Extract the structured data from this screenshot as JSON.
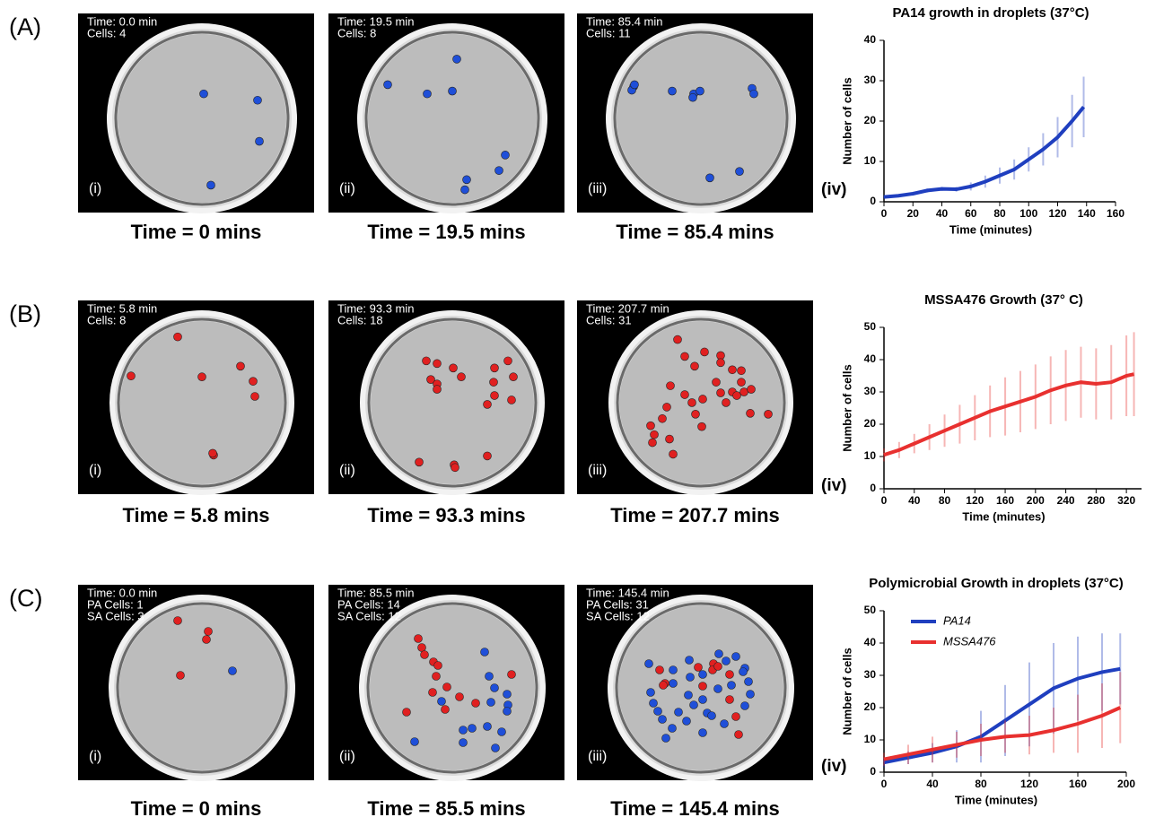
{
  "panels": [
    {
      "label": "(A)",
      "chart_label": "(iv)",
      "images": [
        {
          "overlay": [
            "Time: 0.0 min",
            "Cells: 4"
          ],
          "label": "(i)",
          "caption": "Time = 0 mins"
        },
        {
          "overlay": [
            "Time: 19.5 min",
            "Cells: 8"
          ],
          "label": "(ii)",
          "caption": "Time = 19.5  mins"
        },
        {
          "overlay": [
            "Time: 85.4 min",
            "Cells: 11"
          ],
          "label": "(iii)",
          "caption": "Time = 85.4  mins"
        }
      ]
    },
    {
      "label": "(B)",
      "chart_label": "(iv)",
      "images": [
        {
          "overlay": [
            "Time: 5.8 min",
            "Cells: 8"
          ],
          "label": "(i)",
          "caption": "Time = 5.8 mins"
        },
        {
          "overlay": [
            "Time: 93.3 min",
            "Cells: 18"
          ],
          "label": "(ii)",
          "caption": "Time = 93.3  mins"
        },
        {
          "overlay": [
            "Time: 207.7 min",
            "Cells: 31"
          ],
          "label": "(iii)",
          "caption": "Time = 207.7  mins"
        }
      ]
    },
    {
      "label": "(C)",
      "chart_label": "(iv)",
      "images": [
        {
          "overlay": [
            "Time: 0.0 min",
            "PA Cells: 1",
            "SA Cells: 3"
          ],
          "label": "(i)",
          "caption": "Time = 0 mins"
        },
        {
          "overlay": [
            "Time: 85.5 min",
            "PA Cells: 14",
            "SA Cells: 12"
          ],
          "label": "(ii)",
          "caption": "Time = 85.5  mins"
        },
        {
          "overlay": [
            "Time: 145.4 min",
            "PA Cells: 31",
            "SA Cells: 12"
          ],
          "label": "(iii)",
          "caption": "Time = 145.4  mins"
        }
      ]
    }
  ],
  "chart_data": [
    {
      "type": "line",
      "title": "PA14 growth in droplets (37°C)",
      "x_label": "Time (minutes)",
      "y_label": "Number of cells",
      "x": [
        0,
        10,
        20,
        30,
        40,
        50,
        60,
        70,
        80,
        90,
        100,
        110,
        120,
        130,
        138
      ],
      "series": [
        {
          "name": "PA14",
          "color": "#1f3fbf",
          "values": [
            1.2,
            1.5,
            2,
            2.8,
            3.2,
            3.1,
            3.8,
            5,
            6.5,
            8,
            10.5,
            13,
            16,
            20,
            23.5
          ],
          "errors": [
            0.3,
            0.3,
            0.4,
            0.5,
            0.5,
            0.6,
            1,
            1.5,
            2,
            2.5,
            3,
            4,
            5,
            6.5,
            7.5
          ]
        }
      ],
      "xlim": [
        0,
        160
      ],
      "xticks": [
        0,
        20,
        40,
        60,
        80,
        100,
        120,
        140,
        160
      ],
      "ylim": [
        0,
        40
      ],
      "yticks": [
        0,
        10,
        20,
        30,
        40
      ],
      "legend": false
    },
    {
      "type": "line",
      "title": "MSSA476 Growth (37° C)",
      "x_label": "Time (minutes)",
      "y_label": "Number of cells",
      "x": [
        0,
        20,
        40,
        60,
        80,
        100,
        120,
        140,
        160,
        180,
        200,
        220,
        240,
        260,
        280,
        300,
        320,
        330
      ],
      "series": [
        {
          "name": "MSSA476",
          "color": "#e8302f",
          "values": [
            10.5,
            12,
            14,
            16,
            18,
            20,
            22,
            24,
            25.5,
            27,
            28.5,
            30.5,
            32,
            33,
            32.5,
            33,
            35,
            35.5
          ],
          "errors": [
            2,
            2.5,
            3,
            4,
            5,
            6,
            7,
            8,
            9,
            9.5,
            10,
            10.5,
            11,
            11,
            11,
            11.5,
            12.5,
            13
          ]
        }
      ],
      "xlim": [
        0,
        340
      ],
      "xticks": [
        0,
        40,
        80,
        120,
        160,
        200,
        240,
        280,
        320
      ],
      "ylim": [
        0,
        50
      ],
      "yticks": [
        0,
        10,
        20,
        30,
        40,
        50
      ],
      "legend": false
    },
    {
      "type": "line",
      "title": "Polymicrobial Growth in droplets (37°C)",
      "x_label": "Time (minutes)",
      "y_label": "Number of cells",
      "x": [
        0,
        20,
        40,
        60,
        80,
        100,
        120,
        140,
        160,
        180,
        195
      ],
      "series": [
        {
          "name": "PA14",
          "color": "#1f3fbf",
          "values": [
            3,
            4.5,
            6,
            8,
            11,
            16,
            21,
            26,
            29,
            31,
            32
          ],
          "errors": [
            1.5,
            2,
            3,
            5,
            8,
            11,
            13,
            14,
            13,
            12,
            11
          ]
        },
        {
          "name": "MSSA476",
          "color": "#e8302f",
          "values": [
            4,
            5.5,
            7,
            8.5,
            10,
            11,
            11.5,
            13,
            15,
            17.5,
            20
          ],
          "errors": [
            2,
            3,
            4,
            4,
            5,
            5,
            6,
            7,
            9,
            10,
            11
          ]
        }
      ],
      "xlim": [
        0,
        200
      ],
      "xticks": [
        0,
        40,
        80,
        120,
        160,
        200
      ],
      "ylim": [
        0,
        50
      ],
      "yticks": [
        0,
        10,
        20,
        30,
        40,
        50
      ],
      "legend": true
    }
  ]
}
